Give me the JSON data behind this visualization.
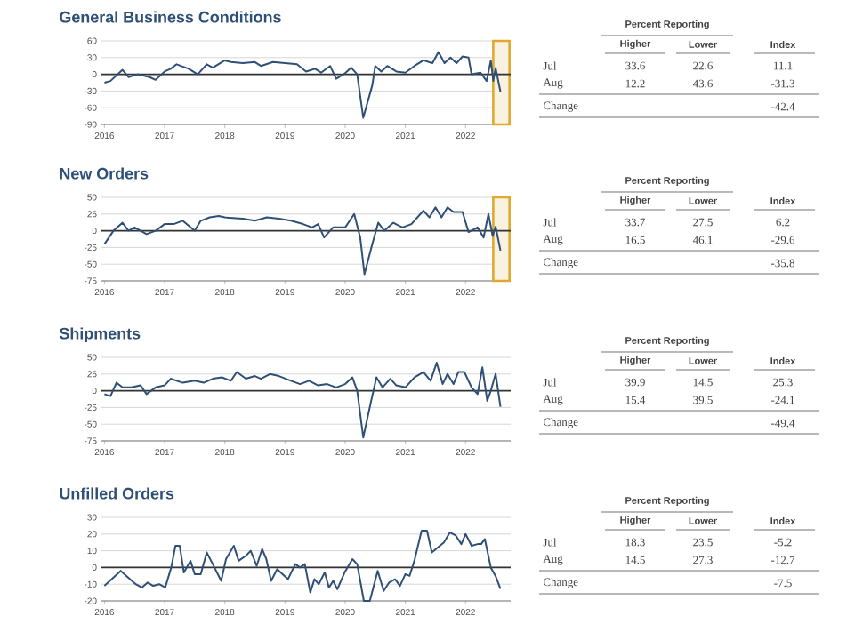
{
  "chart_data": [
    {
      "type": "line",
      "title": "General Business Conditions",
      "xlim": [
        2015.95,
        2022.75
      ],
      "xticks": [
        2016,
        2017,
        2018,
        2019,
        2020,
        2021,
        2022
      ],
      "ylim": [
        -90,
        60
      ],
      "yticks": [
        -90,
        -60,
        -30,
        0,
        30,
        60
      ],
      "grid": "y",
      "ref_lines": [
        {
          "axis": "y",
          "value": 0,
          "color": "#333333"
        }
      ],
      "bands": [
        {
          "axis": "x",
          "from": 2022.46,
          "to": 2022.73,
          "color": "#e0a82e"
        }
      ],
      "annotations": [
        "Percent Reporting",
        "Higher",
        "Lower",
        "Index",
        "Jul",
        "33.6",
        "22.6",
        "11.1",
        "Aug",
        "12.2",
        "43.6",
        "-31.3",
        "Change",
        "-42.4"
      ],
      "series": [
        {
          "color": "#2e5077",
          "x": [
            2016.0,
            2016.1,
            2016.3,
            2016.4,
            2016.55,
            2016.75,
            2016.85,
            2017.0,
            2017.1,
            2017.2,
            2017.4,
            2017.55,
            2017.7,
            2017.8,
            2018.0,
            2018.1,
            2018.3,
            2018.5,
            2018.6,
            2018.8,
            2019.0,
            2019.2,
            2019.35,
            2019.5,
            2019.6,
            2019.75,
            2019.85,
            2020.0,
            2020.1,
            2020.2,
            2020.3,
            2020.45,
            2020.5,
            2020.6,
            2020.7,
            2020.85,
            2021.0,
            2021.15,
            2021.3,
            2021.45,
            2021.55,
            2021.65,
            2021.75,
            2021.85,
            2021.95,
            2022.05,
            2022.1,
            2022.25,
            2022.35,
            2022.42,
            2022.46,
            2022.5,
            2022.58
          ],
          "values": [
            -15,
            -12,
            8,
            -5,
            0,
            -5,
            -10,
            5,
            10,
            18,
            10,
            0,
            18,
            12,
            25,
            22,
            20,
            22,
            15,
            22,
            20,
            18,
            5,
            10,
            3,
            15,
            -8,
            2,
            12,
            0,
            -78,
            -20,
            15,
            5,
            15,
            5,
            3,
            15,
            25,
            20,
            40,
            20,
            30,
            20,
            32,
            30,
            0,
            3,
            -12,
            25,
            -12,
            11.1,
            -31.3
          ]
        }
      ]
    },
    {
      "type": "line",
      "title": "New Orders",
      "xlim": [
        2015.95,
        2022.75
      ],
      "xticks": [
        2016,
        2017,
        2018,
        2019,
        2020,
        2021,
        2022
      ],
      "ylim": [
        -75,
        50
      ],
      "yticks": [
        -75,
        -50,
        -25,
        0,
        25,
        50
      ],
      "grid": "y",
      "ref_lines": [
        {
          "axis": "y",
          "value": 0,
          "color": "#333333"
        }
      ],
      "bands": [
        {
          "axis": "x",
          "from": 2022.46,
          "to": 2022.73,
          "color": "#e0a82e"
        }
      ],
      "annotations": [
        "Percent Reporting",
        "Higher",
        "Lower",
        "Index",
        "Jul",
        "33.7",
        "27.5",
        "6.2",
        "Aug",
        "16.5",
        "46.1",
        "-29.6",
        "Change",
        "-35.8"
      ],
      "series": [
        {
          "color": "#2e5077",
          "x": [
            2016.0,
            2016.15,
            2016.3,
            2016.4,
            2016.5,
            2016.7,
            2016.85,
            2017.0,
            2017.15,
            2017.3,
            2017.5,
            2017.6,
            2017.75,
            2017.9,
            2018.0,
            2018.3,
            2018.5,
            2018.7,
            2018.9,
            2019.1,
            2019.3,
            2019.45,
            2019.55,
            2019.65,
            2019.8,
            2020.0,
            2020.15,
            2020.25,
            2020.32,
            2020.45,
            2020.55,
            2020.65,
            2020.8,
            2020.95,
            2021.1,
            2021.3,
            2021.4,
            2021.5,
            2021.6,
            2021.7,
            2021.8,
            2021.95,
            2022.05,
            2022.2,
            2022.3,
            2022.38,
            2022.45,
            2022.5,
            2022.58
          ],
          "values": [
            -20,
            0,
            12,
            0,
            5,
            -5,
            0,
            10,
            10,
            15,
            0,
            15,
            20,
            22,
            20,
            18,
            15,
            20,
            18,
            15,
            10,
            5,
            10,
            -10,
            5,
            5,
            25,
            -10,
            -65,
            -20,
            12,
            0,
            12,
            5,
            10,
            30,
            20,
            35,
            20,
            35,
            28,
            28,
            -2,
            5,
            -10,
            25,
            -8,
            6.2,
            -29.6
          ]
        }
      ]
    },
    {
      "type": "line",
      "title": "Shipments",
      "xlim": [
        2015.95,
        2022.75
      ],
      "xticks": [
        2016,
        2017,
        2018,
        2019,
        2020,
        2021,
        2022
      ],
      "ylim": [
        -75,
        50
      ],
      "yticks": [
        -75,
        -50,
        -25,
        0,
        25,
        50
      ],
      "grid": "y",
      "ref_lines": [
        {
          "axis": "y",
          "value": 0,
          "color": "#333333"
        }
      ],
      "annotations": [
        "Percent Reporting",
        "Higher",
        "Lower",
        "Index",
        "Jul",
        "39.9",
        "14.5",
        "25.3",
        "Aug",
        "15.4",
        "39.5",
        "-24.1",
        "Change",
        "-49.4"
      ],
      "series": [
        {
          "color": "#2e5077",
          "x": [
            2016.0,
            2016.1,
            2016.2,
            2016.3,
            2016.45,
            2016.6,
            2016.7,
            2016.85,
            2017.0,
            2017.1,
            2017.3,
            2017.5,
            2017.65,
            2017.8,
            2017.95,
            2018.1,
            2018.2,
            2018.35,
            2018.5,
            2018.6,
            2018.75,
            2018.9,
            2019.1,
            2019.25,
            2019.4,
            2019.55,
            2019.7,
            2019.85,
            2020.0,
            2020.12,
            2020.2,
            2020.3,
            2020.42,
            2020.52,
            2020.62,
            2020.75,
            2020.85,
            2021.0,
            2021.15,
            2021.3,
            2021.42,
            2021.52,
            2021.62,
            2021.7,
            2021.8,
            2021.88,
            2021.98,
            2022.1,
            2022.2,
            2022.28,
            2022.36,
            2022.42,
            2022.5,
            2022.58
          ],
          "values": [
            -5,
            -8,
            12,
            5,
            5,
            8,
            -5,
            5,
            8,
            18,
            12,
            15,
            12,
            18,
            20,
            15,
            28,
            18,
            22,
            18,
            25,
            22,
            15,
            10,
            15,
            8,
            10,
            5,
            10,
            20,
            0,
            -70,
            -20,
            20,
            5,
            18,
            8,
            5,
            20,
            28,
            15,
            42,
            10,
            25,
            10,
            28,
            28,
            5,
            -5,
            35,
            -15,
            0,
            25.3,
            -24.1
          ]
        }
      ]
    },
    {
      "type": "line",
      "title": "Unfilled Orders",
      "xlim": [
        2015.95,
        2022.75
      ],
      "xticks": [
        2016,
        2017,
        2018,
        2019,
        2020,
        2021,
        2022
      ],
      "ylim": [
        -20,
        30
      ],
      "yticks": [
        -20,
        -10,
        0,
        10,
        20,
        30
      ],
      "grid": "y",
      "ref_lines": [
        {
          "axis": "y",
          "value": 0,
          "color": "#333333"
        }
      ],
      "annotations": [
        "Percent Reporting",
        "Higher",
        "Lower",
        "Index",
        "Jul",
        "18.3",
        "23.5",
        "-5.2",
        "Aug",
        "14.5",
        "27.3",
        "-12.7",
        "Change",
        "-7.5"
      ],
      "series": [
        {
          "color": "#2e5077",
          "x": [
            2016.0,
            2016.27,
            2016.52,
            2016.62,
            2016.72,
            2016.81,
            2016.91,
            2017.01,
            2017.11,
            2017.18,
            2017.25,
            2017.32,
            2017.43,
            2017.5,
            2017.6,
            2017.7,
            2017.8,
            2017.94,
            2018.02,
            2018.15,
            2018.23,
            2018.35,
            2018.43,
            2018.53,
            2018.62,
            2018.69,
            2018.77,
            2018.87,
            2018.96,
            2019.05,
            2019.17,
            2019.25,
            2019.33,
            2019.42,
            2019.49,
            2019.56,
            2019.66,
            2019.73,
            2019.8,
            2019.87,
            2019.99,
            2020.12,
            2020.2,
            2020.31,
            2020.41,
            2020.54,
            2020.64,
            2020.73,
            2020.83,
            2020.91,
            2021.0,
            2021.07,
            2021.15,
            2021.27,
            2021.36,
            2021.44,
            2021.54,
            2021.64,
            2021.74,
            2021.84,
            2021.93,
            2022.0,
            2022.1,
            2022.2,
            2022.26,
            2022.32,
            2022.42,
            2022.5,
            2022.58
          ],
          "values": [
            -11,
            -2,
            -10,
            -12,
            -9,
            -11,
            -10,
            -12,
            0,
            13,
            13,
            -3,
            4,
            -4,
            -4,
            9,
            2,
            -8,
            5,
            13,
            4,
            7,
            10,
            1,
            11,
            5,
            -8,
            -1,
            -4,
            -7,
            2,
            0,
            2,
            -15,
            -7,
            -10,
            -3,
            -12,
            -8,
            -13,
            -3,
            5,
            2,
            -20,
            -20,
            -2,
            -14,
            -9,
            -7,
            -11,
            -4,
            -5,
            4,
            22,
            22,
            9,
            12,
            15,
            21,
            19,
            14,
            20,
            13,
            14,
            14,
            17,
            0,
            -5.2,
            -12.7
          ]
        }
      ]
    }
  ]
}
